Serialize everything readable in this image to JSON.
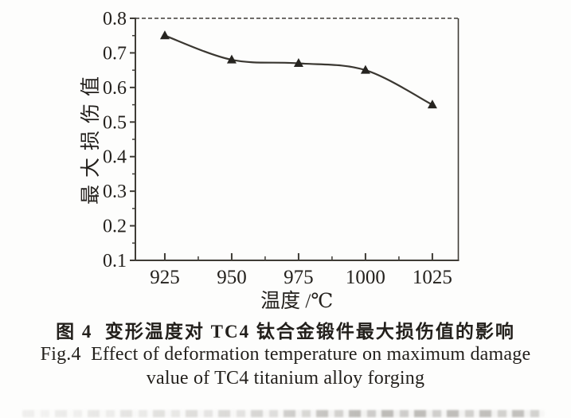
{
  "figure": {
    "caption_zh": "图 4  变形温度对 TC4 钛合金锻件最大损伤值的影响",
    "caption_en_line1": "Fig.4  Effect of deformation temperature on maximum damage",
    "caption_en_line2": "value of TC4 titanium alloy forging"
  },
  "chart_data": {
    "type": "line",
    "title": "",
    "xlabel": "温度 /℃",
    "ylabel": "最大损伤值",
    "x": [
      925,
      950,
      975,
      1000,
      1025
    ],
    "values": [
      0.75,
      0.68,
      0.67,
      0.65,
      0.55
    ],
    "series": [
      {
        "name": "最大损伤值",
        "values": [
          0.75,
          0.68,
          0.67,
          0.65,
          0.55
        ]
      }
    ],
    "xlim": [
      914,
      1034.7
    ],
    "ylim": [
      0.1,
      0.8
    ],
    "x_ticks": [
      "925",
      "950",
      "975",
      "1000",
      "1025"
    ],
    "x_minor_ticks": [
      937.5,
      962.5,
      987.5,
      1012.5
    ],
    "y_ticks": [
      "0.1",
      "0.2",
      "0.3",
      "0.4",
      "0.5",
      "0.6",
      "0.7",
      "0.8"
    ],
    "y_minor_ticks": [
      0.15,
      0.25,
      0.35,
      0.45,
      0.55,
      0.65,
      0.75
    ],
    "marker": "filled-triangle-up",
    "grid": false,
    "legend": "none",
    "line_color": "#3a3731",
    "marker_color": "#262420",
    "axis_color": "#3f3c36",
    "text_color": "#23201c",
    "border_style": {
      "top": "dashed",
      "right": "solid",
      "bottom": "solid",
      "left": "solid"
    }
  }
}
